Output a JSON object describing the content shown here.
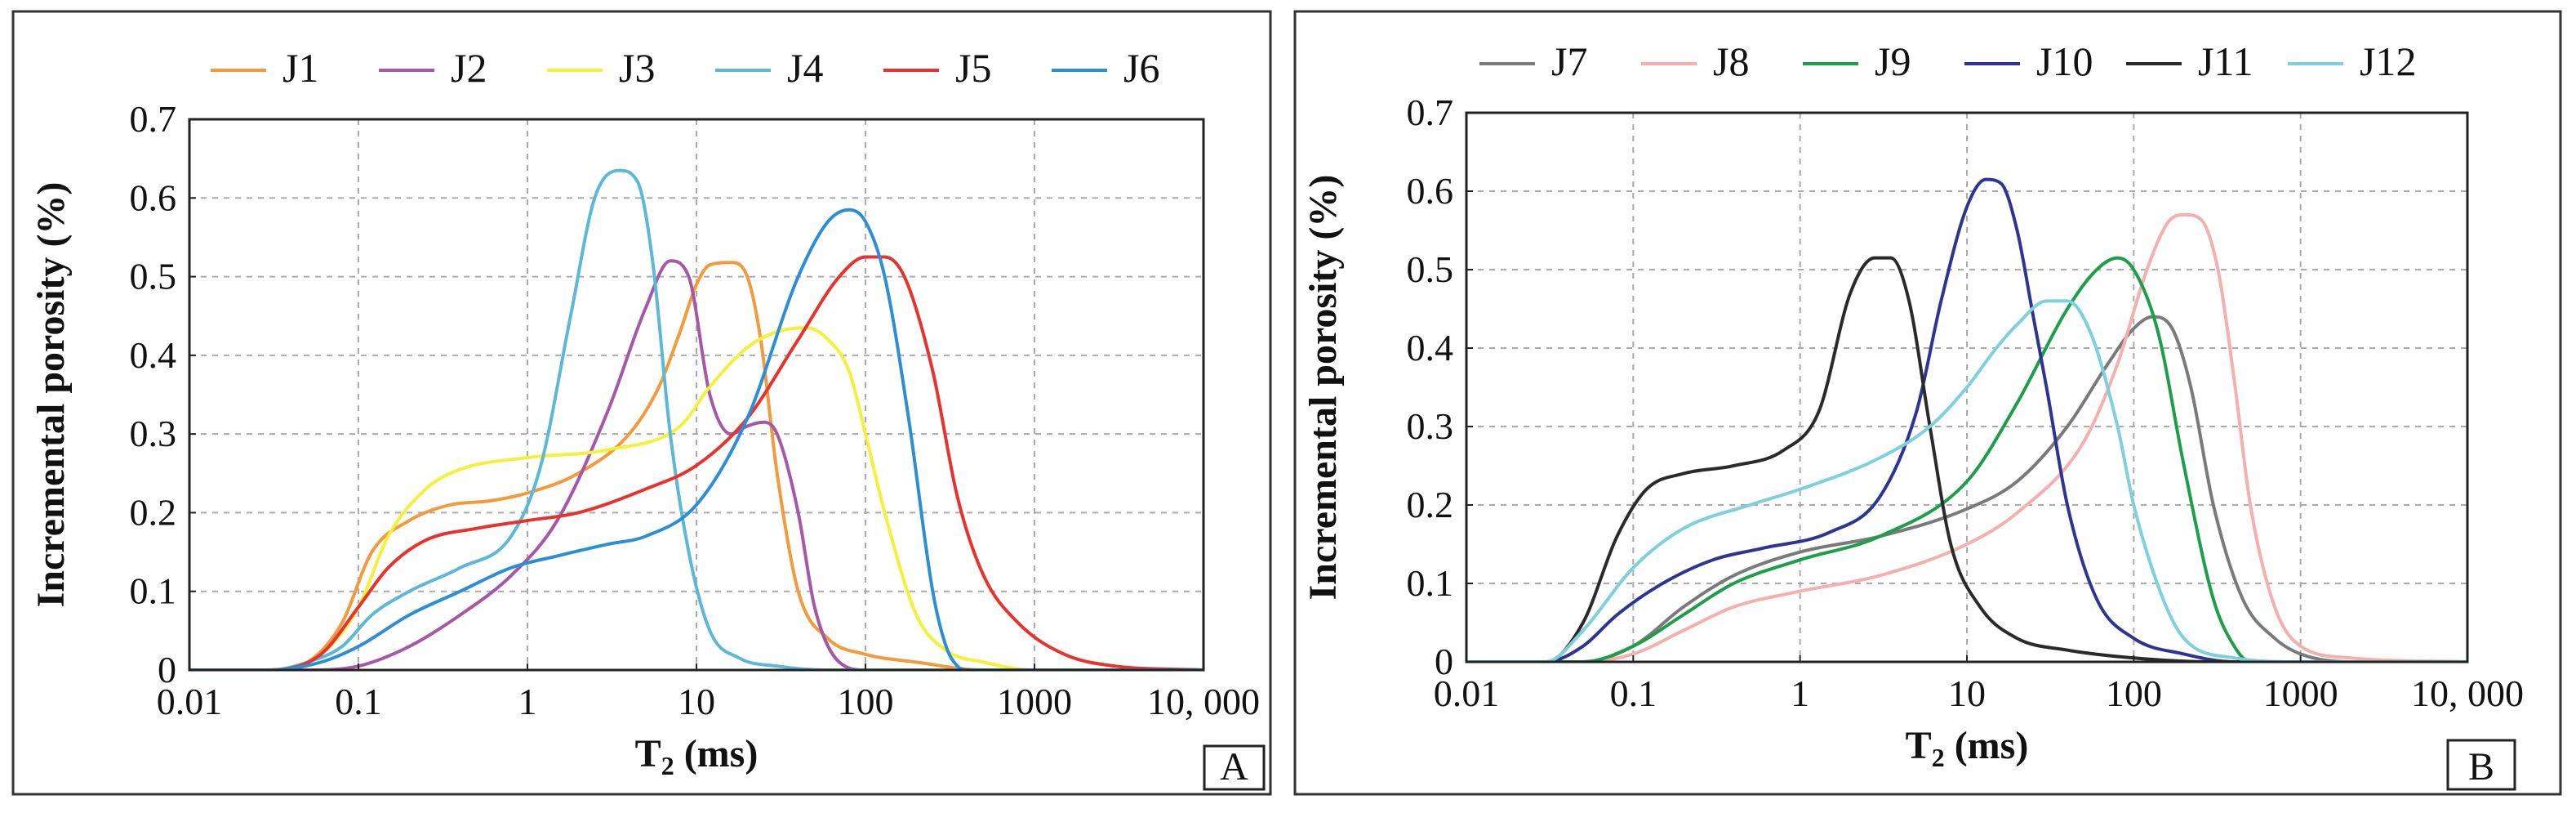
{
  "chart_data": [
    {
      "type": "line",
      "panel_label": "A",
      "xscale": "log",
      "xlabel_main": "T",
      "xlabel_sub": "2",
      "xlabel_unit": " (ms)",
      "ylabel": "Incremental porosity (%)",
      "xlim": [
        0.01,
        10000
      ],
      "ylim": [
        0,
        0.7
      ],
      "x_ticks": [
        0.01,
        0.1,
        1,
        10,
        100,
        1000,
        10000
      ],
      "x_tick_labels": [
        "0.01",
        "0.1",
        "1",
        "10",
        "100",
        "1000",
        "10, 000"
      ],
      "y_ticks": [
        0,
        0.1,
        0.2,
        0.3,
        0.4,
        0.5,
        0.6,
        0.7
      ],
      "y_tick_labels": [
        "0",
        "0.1",
        "0.2",
        "0.3",
        "0.4",
        "0.5",
        "0.6",
        "0.7"
      ],
      "grid": true,
      "legend_position": "top",
      "series": [
        {
          "name": "J1",
          "color": "#F39A3C",
          "x": [
            0.01,
            0.03,
            0.05,
            0.08,
            0.12,
            0.2,
            0.35,
            0.6,
            1,
            2,
            4,
            6,
            8,
            10,
            12,
            16,
            20,
            24,
            30,
            40,
            60,
            100,
            200,
            500,
            1000,
            10000
          ],
          "y": [
            0,
            0,
            0.01,
            0.06,
            0.15,
            0.19,
            0.21,
            0.215,
            0.225,
            0.25,
            0.3,
            0.36,
            0.43,
            0.49,
            0.515,
            0.518,
            0.5,
            0.42,
            0.25,
            0.1,
            0.04,
            0.02,
            0.01,
            0,
            0,
            0
          ]
        },
        {
          "name": "J2",
          "color": "#A558A8",
          "x": [
            0.01,
            0.05,
            0.1,
            0.2,
            0.4,
            0.8,
            1.5,
            3,
            5,
            7,
            9,
            12,
            16,
            20,
            25,
            30,
            40,
            50,
            70,
            100,
            1000,
            10000
          ],
          "y": [
            0,
            0,
            0.005,
            0.03,
            0.07,
            0.12,
            0.19,
            0.33,
            0.46,
            0.52,
            0.5,
            0.35,
            0.3,
            0.31,
            0.315,
            0.3,
            0.2,
            0.08,
            0.01,
            0,
            0,
            0
          ]
        },
        {
          "name": "J3",
          "color": "#F5F03A",
          "x": [
            0.01,
            0.03,
            0.06,
            0.1,
            0.15,
            0.25,
            0.4,
            1,
            3,
            8,
            12,
            20,
            30,
            45,
            60,
            80,
            100,
            130,
            200,
            300,
            500,
            1000,
            10000
          ],
          "y": [
            0,
            0,
            0.02,
            0.08,
            0.17,
            0.23,
            0.255,
            0.27,
            0.28,
            0.31,
            0.36,
            0.41,
            0.43,
            0.435,
            0.42,
            0.38,
            0.3,
            0.2,
            0.07,
            0.025,
            0.01,
            0,
            0
          ]
        },
        {
          "name": "J4",
          "color": "#5BB8D6",
          "x": [
            0.01,
            0.03,
            0.05,
            0.08,
            0.12,
            0.2,
            0.4,
            0.8,
            1.2,
            1.8,
            2.5,
            3.5,
            4.5,
            5.5,
            7,
            9,
            12,
            18,
            30,
            60,
            100,
            1000,
            10000
          ],
          "y": [
            0,
            0,
            0.01,
            0.03,
            0.07,
            0.1,
            0.13,
            0.17,
            0.26,
            0.45,
            0.6,
            0.635,
            0.62,
            0.52,
            0.3,
            0.15,
            0.05,
            0.015,
            0.005,
            0,
            0,
            0,
            0
          ]
        },
        {
          "name": "J5",
          "color": "#E8322E",
          "x": [
            0.01,
            0.03,
            0.06,
            0.1,
            0.15,
            0.25,
            0.5,
            1,
            2,
            5,
            10,
            20,
            40,
            70,
            100,
            130,
            170,
            250,
            350,
            500,
            800,
            1500,
            3000,
            10000
          ],
          "y": [
            0,
            0,
            0.02,
            0.08,
            0.13,
            0.165,
            0.18,
            0.19,
            0.2,
            0.23,
            0.26,
            0.32,
            0.42,
            0.5,
            0.525,
            0.525,
            0.5,
            0.38,
            0.22,
            0.12,
            0.06,
            0.02,
            0.005,
            0
          ]
        },
        {
          "name": "J6",
          "color": "#2C8FD6",
          "x": [
            0.01,
            0.03,
            0.06,
            0.1,
            0.2,
            0.4,
            0.8,
            1.5,
            3,
            5,
            10,
            20,
            40,
            60,
            80,
            100,
            130,
            180,
            250,
            300,
            350,
            400,
            10000
          ],
          "y": [
            0,
            0,
            0.01,
            0.03,
            0.07,
            0.1,
            0.13,
            0.145,
            0.16,
            0.17,
            0.21,
            0.32,
            0.5,
            0.57,
            0.585,
            0.57,
            0.5,
            0.32,
            0.1,
            0.03,
            0.005,
            0,
            0
          ]
        }
      ]
    },
    {
      "type": "line",
      "panel_label": "B",
      "xscale": "log",
      "xlabel_main": "T",
      "xlabel_sub": "2",
      "xlabel_unit": " (ms)",
      "ylabel": "Incremental porosity (%)",
      "xlim": [
        0.01,
        10000
      ],
      "ylim": [
        0,
        0.7
      ],
      "x_ticks": [
        0.01,
        0.1,
        1,
        10,
        100,
        1000,
        10000
      ],
      "x_tick_labels": [
        "0.01",
        "0.1",
        "1",
        "10",
        "100",
        "1000",
        "10, 000"
      ],
      "y_ticks": [
        0,
        0.1,
        0.2,
        0.3,
        0.4,
        0.5,
        0.6,
        0.7
      ],
      "y_tick_labels": [
        "0",
        "0.1",
        "0.2",
        "0.3",
        "0.4",
        "0.5",
        "0.6",
        "0.7"
      ],
      "grid": true,
      "legend_position": "top",
      "series": [
        {
          "name": "J7",
          "color": "#7A7A7A",
          "x": [
            0.01,
            0.05,
            0.1,
            0.2,
            0.4,
            1,
            3,
            10,
            20,
            40,
            70,
            100,
            130,
            170,
            220,
            300,
            450,
            700,
            1000,
            2000,
            10000
          ],
          "y": [
            0,
            0,
            0.02,
            0.07,
            0.11,
            0.14,
            0.16,
            0.195,
            0.23,
            0.3,
            0.38,
            0.425,
            0.44,
            0.425,
            0.35,
            0.2,
            0.08,
            0.03,
            0.01,
            0,
            0
          ]
        },
        {
          "name": "J8",
          "color": "#F4AFAF",
          "x": [
            0.01,
            0.05,
            0.1,
            0.2,
            0.4,
            1,
            3,
            10,
            20,
            50,
            80,
            120,
            160,
            200,
            250,
            320,
            400,
            500,
            700,
            1000,
            2000,
            10000
          ],
          "y": [
            0,
            0,
            0.01,
            0.04,
            0.07,
            0.09,
            0.11,
            0.15,
            0.19,
            0.28,
            0.38,
            0.5,
            0.56,
            0.57,
            0.565,
            0.5,
            0.36,
            0.2,
            0.07,
            0.02,
            0.005,
            0
          ]
        },
        {
          "name": "J9",
          "color": "#1E9E4A",
          "x": [
            0.01,
            0.05,
            0.1,
            0.2,
            0.4,
            1,
            3,
            10,
            20,
            40,
            60,
            80,
            100,
            140,
            200,
            300,
            400,
            500,
            10000
          ],
          "y": [
            0,
            0,
            0.02,
            0.06,
            0.1,
            0.13,
            0.16,
            0.23,
            0.33,
            0.45,
            0.5,
            0.515,
            0.5,
            0.42,
            0.25,
            0.08,
            0.02,
            0,
            0
          ]
        },
        {
          "name": "J10",
          "color": "#2E3591",
          "x": [
            0.01,
            0.03,
            0.05,
            0.08,
            0.15,
            0.3,
            0.6,
            1.5,
            3,
            5,
            7,
            10,
            13,
            16,
            20,
            25,
            30,
            40,
            60,
            100,
            200,
            400,
            10000
          ],
          "y": [
            0,
            0,
            0.02,
            0.06,
            0.1,
            0.13,
            0.145,
            0.165,
            0.21,
            0.32,
            0.46,
            0.58,
            0.615,
            0.61,
            0.55,
            0.44,
            0.35,
            0.2,
            0.08,
            0.03,
            0.01,
            0,
            0
          ]
        },
        {
          "name": "J11",
          "color": "#2A2A2A",
          "x": [
            0.01,
            0.03,
            0.05,
            0.08,
            0.12,
            0.2,
            0.4,
            0.8,
            1.3,
            2,
            2.8,
            3.5,
            4.5,
            6,
            8,
            12,
            20,
            40,
            100,
            300,
            1000,
            10000
          ],
          "y": [
            0,
            0,
            0.05,
            0.16,
            0.22,
            0.24,
            0.25,
            0.27,
            0.32,
            0.47,
            0.515,
            0.515,
            0.46,
            0.3,
            0.15,
            0.07,
            0.03,
            0.015,
            0.005,
            0,
            0,
            0
          ]
        },
        {
          "name": "J12",
          "color": "#7ED0DE",
          "x": [
            0.01,
            0.03,
            0.05,
            0.1,
            0.2,
            0.5,
            1,
            3,
            6,
            10,
            15,
            20,
            30,
            40,
            55,
            80,
            100,
            150,
            200,
            400,
            1000,
            10000
          ],
          "y": [
            0,
            0,
            0.04,
            0.12,
            0.17,
            0.2,
            0.22,
            0.26,
            0.3,
            0.35,
            0.4,
            0.43,
            0.46,
            0.46,
            0.42,
            0.3,
            0.2,
            0.08,
            0.03,
            0.005,
            0,
            0
          ]
        }
      ]
    }
  ]
}
